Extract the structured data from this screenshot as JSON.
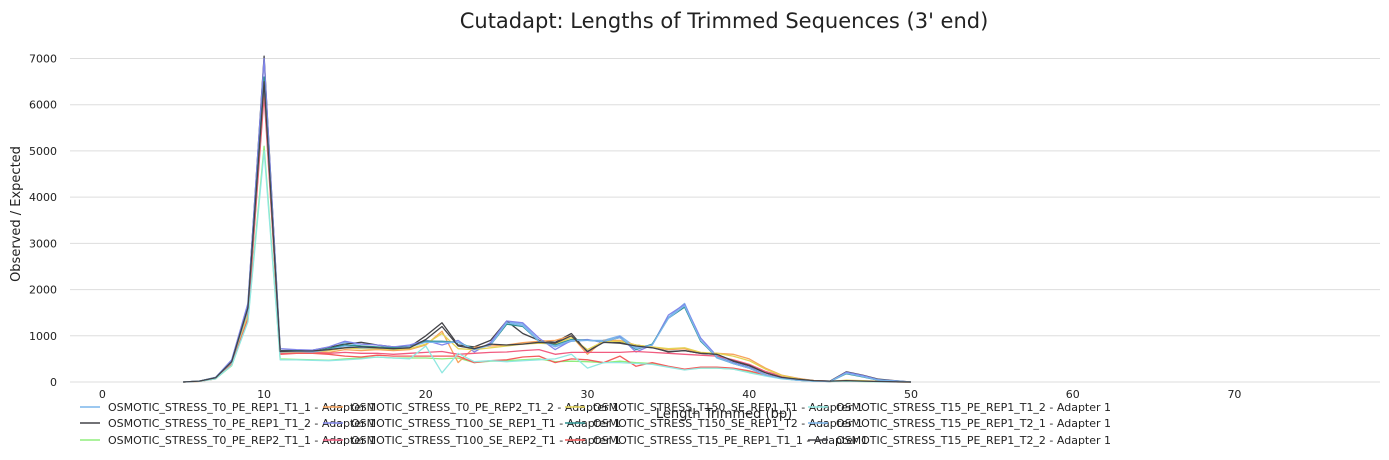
{
  "chart_data": {
    "type": "line",
    "title": "Cutadapt: Lengths of Trimmed Sequences (3' end)",
    "xlabel": "Length Trimmed (bp)",
    "ylabel": "Observed / Expected",
    "xlim": [
      -2,
      79
    ],
    "ylim": [
      0,
      7400
    ],
    "x_ticks": [
      0,
      10,
      20,
      30,
      40,
      50,
      60,
      70
    ],
    "y_ticks": [
      0,
      1000,
      2000,
      3000,
      4000,
      5000,
      6000,
      7000
    ],
    "grid": "horizontal",
    "legend_position": "bottom",
    "x": [
      5,
      6,
      7,
      8,
      9,
      10,
      11,
      12,
      13,
      14,
      15,
      16,
      17,
      18,
      19,
      20,
      21,
      22,
      23,
      24,
      25,
      26,
      27,
      28,
      29,
      30,
      31,
      32,
      33,
      34,
      35,
      36,
      37,
      38,
      39,
      40,
      41,
      42,
      43,
      44,
      45,
      46,
      47,
      48,
      49,
      50
    ],
    "series": [
      {
        "name": "OSMOTIC_STRESS_T0_PE_REP1_T1_1 - Adapter 1",
        "color": "#7cb5ec",
        "values": [
          0,
          20,
          80,
          400,
          1500,
          6500,
          650,
          660,
          660,
          700,
          860,
          780,
          750,
          720,
          780,
          900,
          860,
          860,
          700,
          800,
          1300,
          1250,
          900,
          760,
          880,
          900,
          900,
          1000,
          750,
          800,
          1400,
          1700,
          900,
          520,
          400,
          300,
          150,
          80,
          40,
          20,
          10,
          200,
          120,
          40,
          20,
          0
        ]
      },
      {
        "name": "OSMOTIC_STRESS_T0_PE_REP1_T1_2 - Adapter 1",
        "color": "#434348",
        "values": [
          0,
          20,
          100,
          450,
          1650,
          7050,
          680,
          690,
          690,
          750,
          820,
          860,
          800,
          760,
          760,
          1000,
          1280,
          800,
          760,
          900,
          1320,
          1050,
          900,
          860,
          1050,
          650,
          900,
          850,
          800,
          750,
          650,
          680,
          620,
          600,
          450,
          350,
          200,
          100,
          60,
          30,
          20,
          220,
          150,
          60,
          30,
          0
        ]
      },
      {
        "name": "OSMOTIC_STRESS_T0_PE_REP2_T1_1 - Adapter 1",
        "color": "#90ed7d",
        "values": [
          0,
          15,
          70,
          350,
          1350,
          5100,
          500,
          490,
          480,
          470,
          500,
          520,
          540,
          520,
          520,
          520,
          500,
          520,
          420,
          450,
          460,
          480,
          500,
          440,
          450,
          440,
          420,
          450,
          420,
          400,
          330,
          270,
          300,
          300,
          280,
          220,
          140,
          80,
          40,
          20,
          10,
          20,
          10,
          5,
          2,
          0
        ]
      },
      {
        "name": "OSMOTIC_STRESS_T0_PE_REP2_T1_2 - Adapter 1",
        "color": "#f7a35c",
        "values": [
          0,
          15,
          80,
          400,
          1450,
          6300,
          650,
          660,
          650,
          640,
          700,
          680,
          700,
          680,
          700,
          800,
          1100,
          420,
          750,
          780,
          800,
          850,
          880,
          900,
          1000,
          600,
          900,
          900,
          800,
          750,
          700,
          720,
          620,
          620,
          600,
          500,
          300,
          150,
          80,
          30,
          10,
          30,
          20,
          10,
          5,
          0
        ]
      },
      {
        "name": "OSMOTIC_STRESS_T100_SE_REP1_T1 - Adapter 1",
        "color": "#8085e9",
        "values": [
          0,
          20,
          100,
          480,
          1700,
          7000,
          720,
          700,
          690,
          760,
          880,
          820,
          800,
          760,
          800,
          900,
          800,
          900,
          650,
          850,
          1320,
          1280,
          950,
          700,
          900,
          920,
          850,
          980,
          650,
          800,
          1450,
          1680,
          950,
          560,
          420,
          320,
          160,
          90,
          45,
          20,
          10,
          210,
          140,
          50,
          25,
          0
        ]
      },
      {
        "name": "OSMOTIC_STRESS_T100_SE_REP2_T1 - Adapter 1",
        "color": "#f15c80",
        "values": [
          0,
          15,
          80,
          400,
          1400,
          6200,
          620,
          630,
          640,
          620,
          640,
          620,
          620,
          600,
          620,
          640,
          660,
          600,
          620,
          640,
          650,
          680,
          700,
          600,
          640,
          640,
          640,
          640,
          660,
          640,
          620,
          600,
          580,
          560,
          480,
          380,
          230,
          130,
          70,
          30,
          15,
          30,
          20,
          10,
          5,
          0
        ]
      },
      {
        "name": "OSMOTIC_STRESS_T150_SE_REP1_T1 - Adapter 1",
        "color": "#e4d354",
        "values": [
          0,
          15,
          80,
          420,
          1450,
          6400,
          640,
          650,
          650,
          680,
          740,
          720,
          720,
          700,
          720,
          820,
          1050,
          720,
          700,
          740,
          780,
          820,
          840,
          820,
          960,
          700,
          880,
          880,
          800,
          760,
          720,
          740,
          640,
          620,
          560,
          460,
          280,
          140,
          70,
          30,
          10,
          40,
          30,
          15,
          5,
          0
        ]
      },
      {
        "name": "OSMOTIC_STRESS_T150_SE_REP1_T2 - Adapter 1",
        "color": "#2b908f",
        "values": [
          0,
          20,
          90,
          440,
          1600,
          6600,
          660,
          680,
          660,
          720,
          800,
          780,
          760,
          740,
          760,
          880,
          880,
          860,
          720,
          800,
          1250,
          1200,
          880,
          800,
          920,
          900,
          880,
          960,
          700,
          820,
          1380,
          1620,
          880,
          540,
          400,
          300,
          150,
          80,
          40,
          20,
          10,
          180,
          110,
          40,
          20,
          0
        ]
      },
      {
        "name": "OSMOTIC_STRESS_T15_PE_REP1_T1_1 - Adapter 1",
        "color": "#f45b5b",
        "values": [
          0,
          15,
          70,
          380,
          1350,
          6400,
          600,
          620,
          620,
          600,
          560,
          540,
          580,
          560,
          560,
          560,
          560,
          560,
          420,
          460,
          480,
          540,
          560,
          420,
          500,
          480,
          420,
          560,
          340,
          420,
          340,
          280,
          320,
          320,
          300,
          240,
          150,
          90,
          50,
          25,
          10,
          25,
          15,
          8,
          3,
          0
        ]
      },
      {
        "name": "OSMOTIC_STRESS_T15_PE_REP1_T1_2 - Adapter 1",
        "color": "#91e8e1",
        "values": [
          0,
          15,
          70,
          360,
          1300,
          5000,
          480,
          480,
          470,
          460,
          480,
          500,
          540,
          520,
          500,
          780,
          200,
          620,
          440,
          460,
          440,
          460,
          480,
          500,
          600,
          300,
          420,
          420,
          400,
          380,
          320,
          260,
          300,
          300,
          280,
          200,
          130,
          70,
          40,
          20,
          10,
          20,
          10,
          5,
          2,
          0
        ]
      },
      {
        "name": "OSMOTIC_STRESS_T15_PE_REP1_T2_1 - Adapter 1",
        "color": "#7cb5ec",
        "values": [
          0,
          20,
          90,
          430,
          1550,
          6500,
          650,
          660,
          650,
          700,
          780,
          740,
          740,
          720,
          760,
          860,
          860,
          860,
          700,
          800,
          1280,
          1220,
          880,
          780,
          900,
          900,
          880,
          960,
          720,
          800,
          1380,
          1650,
          900,
          540,
          400,
          300,
          150,
          80,
          40,
          20,
          10,
          190,
          120,
          40,
          20,
          0
        ]
      },
      {
        "name": "OSMOTIC_STRESS_T15_PE_REP1_T2_2 - Adapter 1",
        "color": "#434348",
        "values": [
          0,
          20,
          90,
          440,
          1600,
          6500,
          660,
          670,
          670,
          700,
          740,
          760,
          740,
          720,
          740,
          920,
          1200,
          780,
          720,
          820,
          800,
          820,
          860,
          840,
          1000,
          660,
          860,
          840,
          780,
          740,
          660,
          680,
          620,
          600,
          460,
          360,
          200,
          100,
          60,
          30,
          20,
          30,
          20,
          10,
          5,
          0
        ]
      }
    ]
  }
}
